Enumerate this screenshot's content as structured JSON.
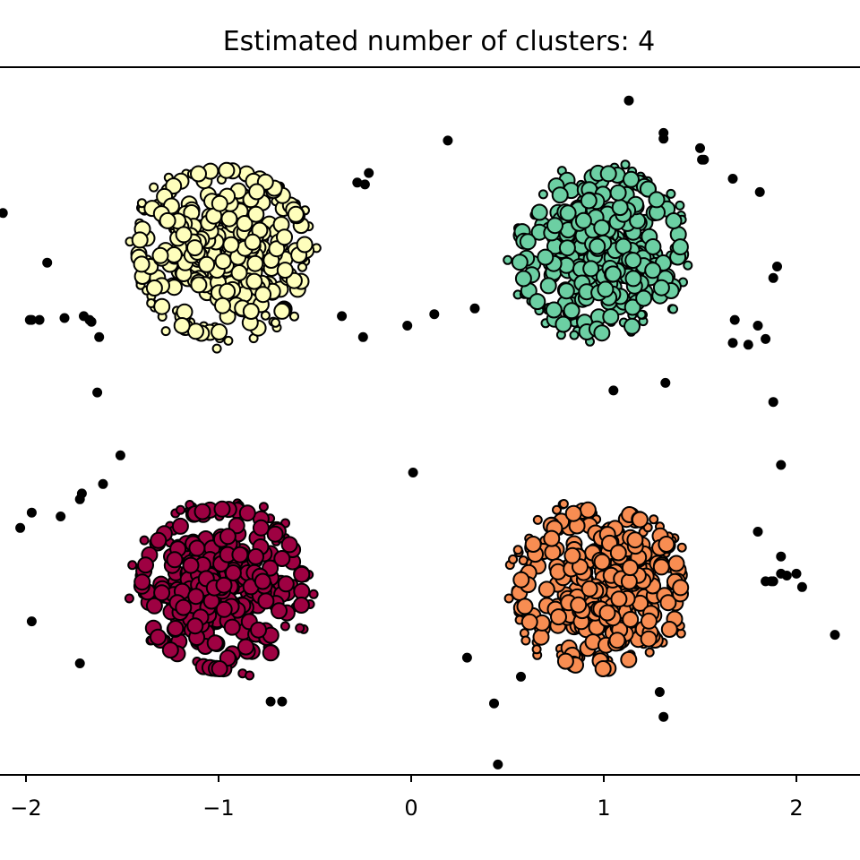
{
  "chart_data": {
    "type": "scatter",
    "title": "Estimated number of clusters: 4",
    "xlabel": "",
    "ylabel": "",
    "xlim": [
      -2.15,
      2.3
    ],
    "ylim": [
      -1.95,
      1.95
    ],
    "grid": false,
    "legend": "none",
    "x_ticks": [
      {
        "value": -2,
        "label": "−2"
      },
      {
        "value": -1,
        "label": "−1"
      },
      {
        "value": 0,
        "label": "0"
      },
      {
        "value": 1,
        "label": "1"
      },
      {
        "value": 2,
        "label": "2"
      }
    ],
    "clusters": [
      {
        "label": 0,
        "center": [
          -0.98,
          0.88
        ],
        "color": "#fefebc",
        "n_core": 260,
        "n_border": 60,
        "spread": 0.28,
        "seed": 11
      },
      {
        "label": 1,
        "center": [
          0.98,
          0.88
        ],
        "color": "#6ccfa3",
        "n_core": 250,
        "n_border": 55,
        "spread": 0.27,
        "seed": 23
      },
      {
        "label": 2,
        "center": [
          -0.98,
          -0.88
        ],
        "color": "#9e0142",
        "n_core": 270,
        "n_border": 50,
        "spread": 0.27,
        "seed": 37
      },
      {
        "label": 3,
        "center": [
          0.98,
          -0.88
        ],
        "color": "#f88d52",
        "n_core": 260,
        "n_border": 55,
        "spread": 0.27,
        "seed": 51
      }
    ],
    "noise": {
      "color": "#000000",
      "points": [
        [
          -2.12,
          1.09
        ],
        [
          -1.89,
          0.83
        ],
        [
          -1.93,
          0.53
        ],
        [
          -1.97,
          0.53
        ],
        [
          -1.98,
          0.53
        ],
        [
          -1.8,
          0.54
        ],
        [
          -1.7,
          0.55
        ],
        [
          -1.67,
          0.53
        ],
        [
          -1.66,
          0.52
        ],
        [
          -1.62,
          0.44
        ],
        [
          -1.63,
          0.15
        ],
        [
          -1.51,
          -0.18
        ],
        [
          -1.6,
          -0.33
        ],
        [
          -1.71,
          -0.38
        ],
        [
          -1.72,
          -0.41
        ],
        [
          -1.82,
          -0.5
        ],
        [
          -1.97,
          -0.48
        ],
        [
          -2.03,
          -0.56
        ],
        [
          -1.97,
          -1.05
        ],
        [
          -1.72,
          -1.27
        ],
        [
          -0.73,
          -1.47
        ],
        [
          -0.67,
          -1.47
        ],
        [
          -0.36,
          0.55
        ],
        [
          -0.25,
          0.44
        ],
        [
          -0.22,
          1.3
        ],
        [
          -0.28,
          1.25
        ],
        [
          -0.24,
          1.24
        ],
        [
          -0.02,
          0.5
        ],
        [
          0.01,
          -0.27
        ],
        [
          0.12,
          0.56
        ],
        [
          0.19,
          1.47
        ],
        [
          0.33,
          0.59
        ],
        [
          0.29,
          -1.24
        ],
        [
          0.43,
          -1.48
        ],
        [
          0.45,
          -1.8
        ],
        [
          0.57,
          -1.34
        ],
        [
          1.05,
          0.16
        ],
        [
          1.13,
          1.68
        ],
        [
          1.31,
          1.48
        ],
        [
          1.31,
          1.51
        ],
        [
          1.29,
          -1.42
        ],
        [
          1.31,
          -1.55
        ],
        [
          1.5,
          1.43
        ],
        [
          1.51,
          1.37
        ],
        [
          1.52,
          1.37
        ],
        [
          1.67,
          1.27
        ],
        [
          1.68,
          0.53
        ],
        [
          1.67,
          0.41
        ],
        [
          1.75,
          0.4
        ],
        [
          1.8,
          0.5
        ],
        [
          1.84,
          0.43
        ],
        [
          1.88,
          0.75
        ],
        [
          1.9,
          0.81
        ],
        [
          1.81,
          1.2
        ],
        [
          1.88,
          0.1
        ],
        [
          1.92,
          -0.23
        ],
        [
          1.92,
          -0.71
        ],
        [
          1.87,
          -0.84
        ],
        [
          1.88,
          -0.84
        ],
        [
          1.84,
          -0.84
        ],
        [
          1.92,
          -0.8
        ],
        [
          1.95,
          -0.81
        ],
        [
          2.0,
          -0.8
        ],
        [
          2.03,
          -0.87
        ],
        [
          2.2,
          -1.12
        ],
        [
          1.8,
          -0.58
        ],
        [
          1.32,
          0.2
        ]
      ]
    }
  }
}
